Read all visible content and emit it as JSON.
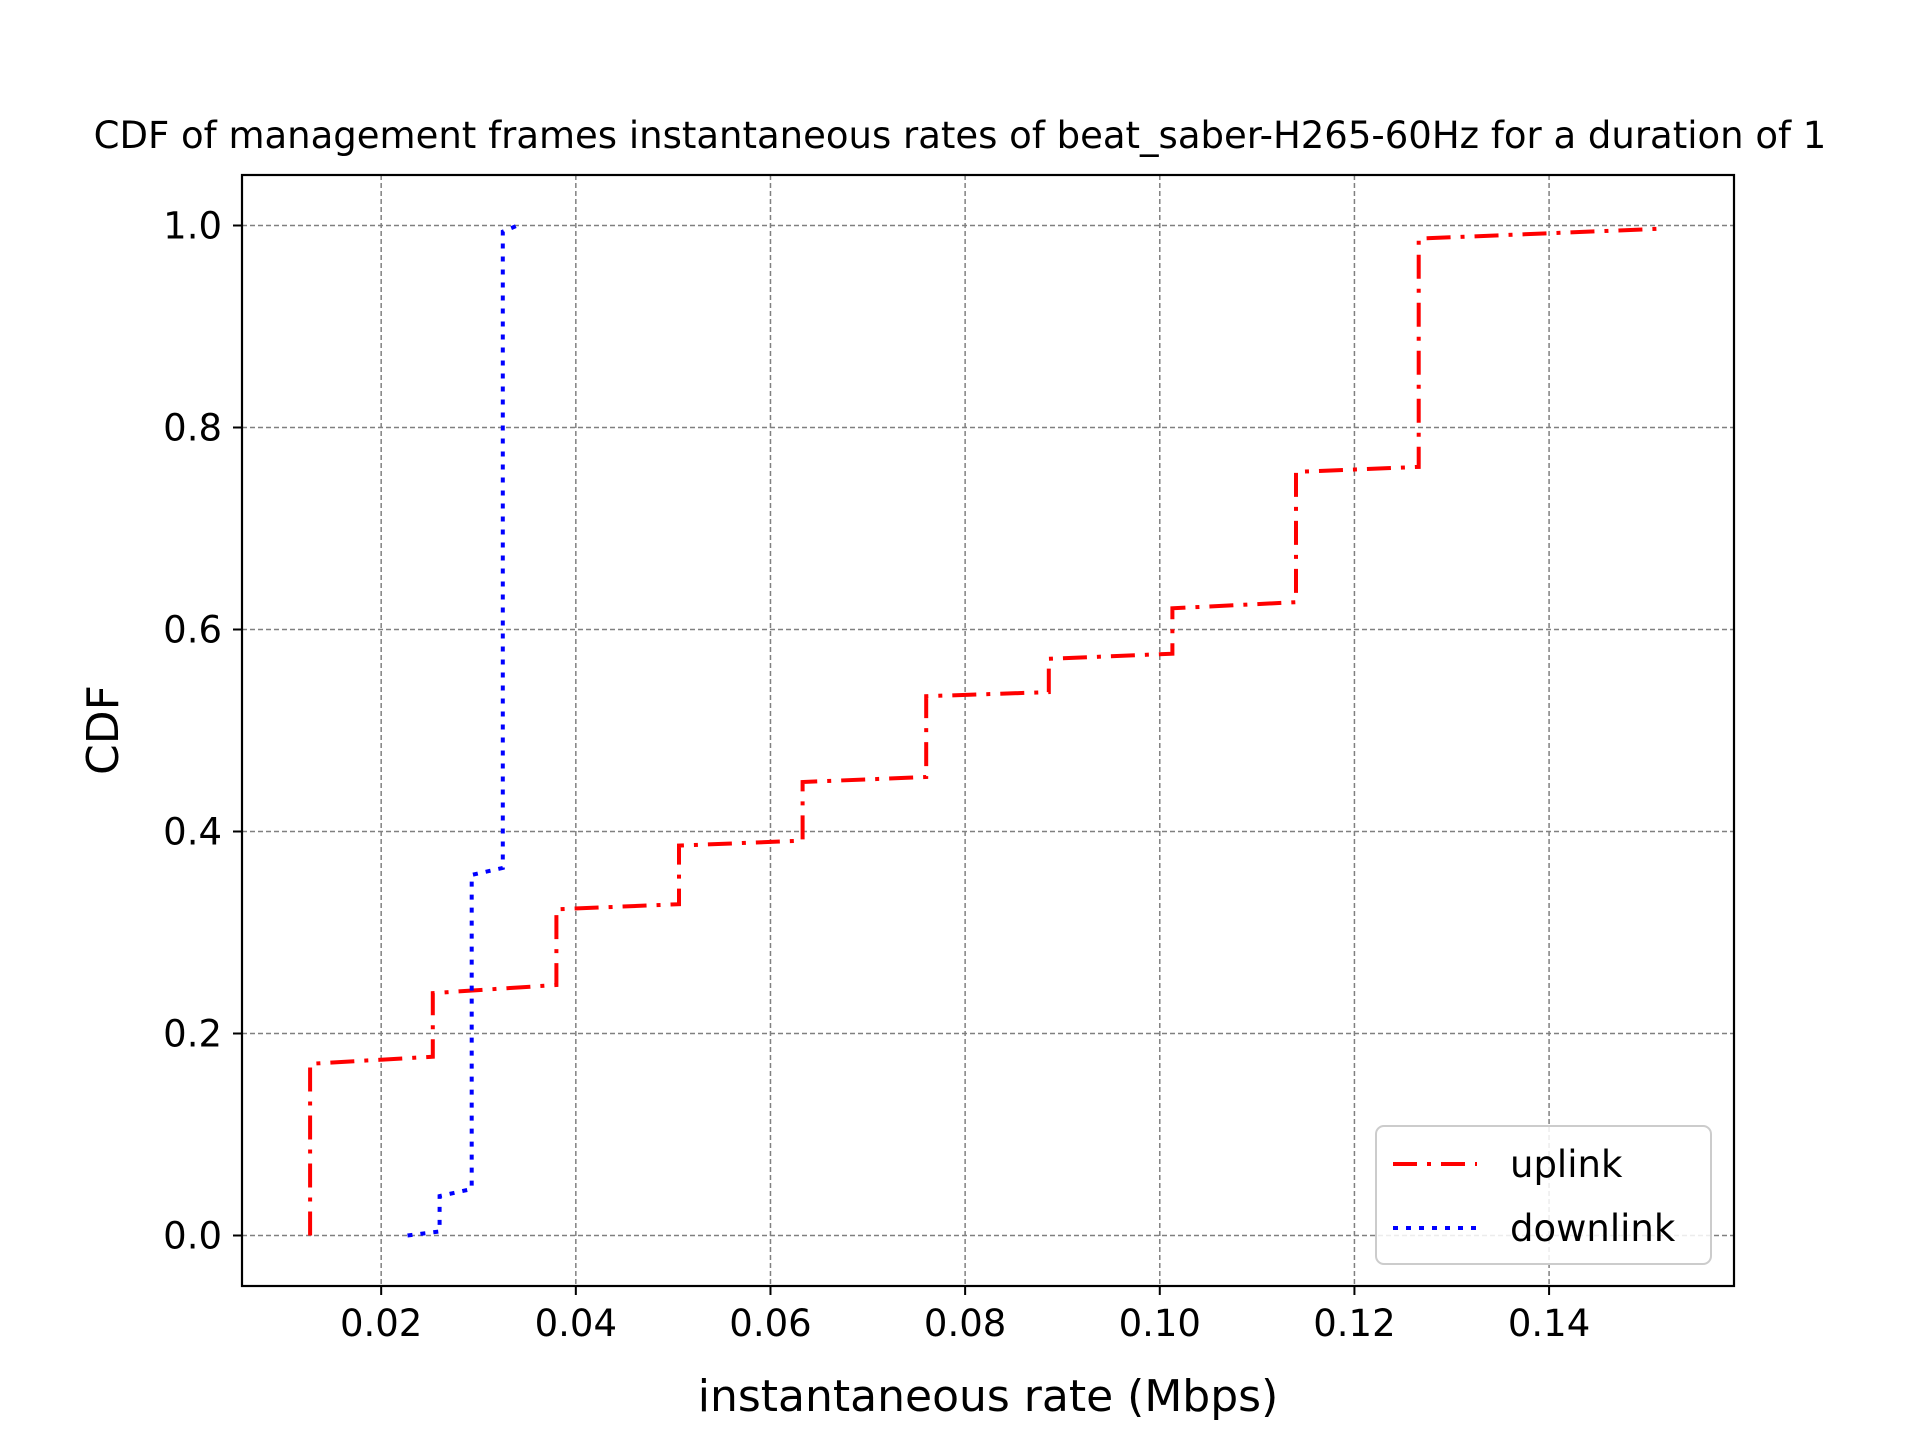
{
  "chart_data": {
    "type": "line",
    "title": "CDF of management frames instantaneous rates of beat_saber-H265-60Hz for a duration of 1",
    "xlabel": "instantaneous rate (Mbps)",
    "ylabel": "CDF",
    "xlim": [
      0.0057,
      0.159
    ],
    "ylim": [
      -0.05,
      1.05
    ],
    "x_ticks": [
      {
        "value": 0.02,
        "label": "0.02"
      },
      {
        "value": 0.04,
        "label": "0.04"
      },
      {
        "value": 0.06,
        "label": "0.06"
      },
      {
        "value": 0.08,
        "label": "0.08"
      },
      {
        "value": 0.1,
        "label": "0.10"
      },
      {
        "value": 0.12,
        "label": "0.12"
      },
      {
        "value": 0.14,
        "label": "0.14"
      }
    ],
    "y_ticks": [
      {
        "value": 0.0,
        "label": "0.0"
      },
      {
        "value": 0.2,
        "label": "0.2"
      },
      {
        "value": 0.4,
        "label": "0.4"
      },
      {
        "value": 0.6,
        "label": "0.6"
      },
      {
        "value": 0.8,
        "label": "0.8"
      },
      {
        "value": 1.0,
        "label": "1.0"
      }
    ],
    "grid": true,
    "legend_position": "lower-right",
    "series": [
      {
        "name": "uplink",
        "color": "#ff0000",
        "style": "dashdot",
        "points": [
          [
            0.0127,
            0.0
          ],
          [
            0.0127,
            0.17
          ],
          [
            0.0253,
            0.177
          ],
          [
            0.0253,
            0.24
          ],
          [
            0.038,
            0.248
          ],
          [
            0.038,
            0.323
          ],
          [
            0.0506,
            0.328
          ],
          [
            0.0506,
            0.386
          ],
          [
            0.0633,
            0.391
          ],
          [
            0.0633,
            0.449
          ],
          [
            0.076,
            0.454
          ],
          [
            0.076,
            0.534
          ],
          [
            0.0886,
            0.538
          ],
          [
            0.0886,
            0.571
          ],
          [
            0.1013,
            0.576
          ],
          [
            0.1013,
            0.621
          ],
          [
            0.114,
            0.627
          ],
          [
            0.114,
            0.756
          ],
          [
            0.1266,
            0.761
          ],
          [
            0.1266,
            0.987
          ],
          [
            0.152,
            0.997
          ]
        ]
      },
      {
        "name": "downlink",
        "color": "#0000ff",
        "style": "dotted",
        "points": [
          [
            0.0227,
            0.0
          ],
          [
            0.026,
            0.004
          ],
          [
            0.026,
            0.039
          ],
          [
            0.0293,
            0.046
          ],
          [
            0.0293,
            0.357
          ],
          [
            0.0325,
            0.364
          ],
          [
            0.0325,
            0.994
          ],
          [
            0.034,
            1.0
          ]
        ]
      }
    ]
  }
}
